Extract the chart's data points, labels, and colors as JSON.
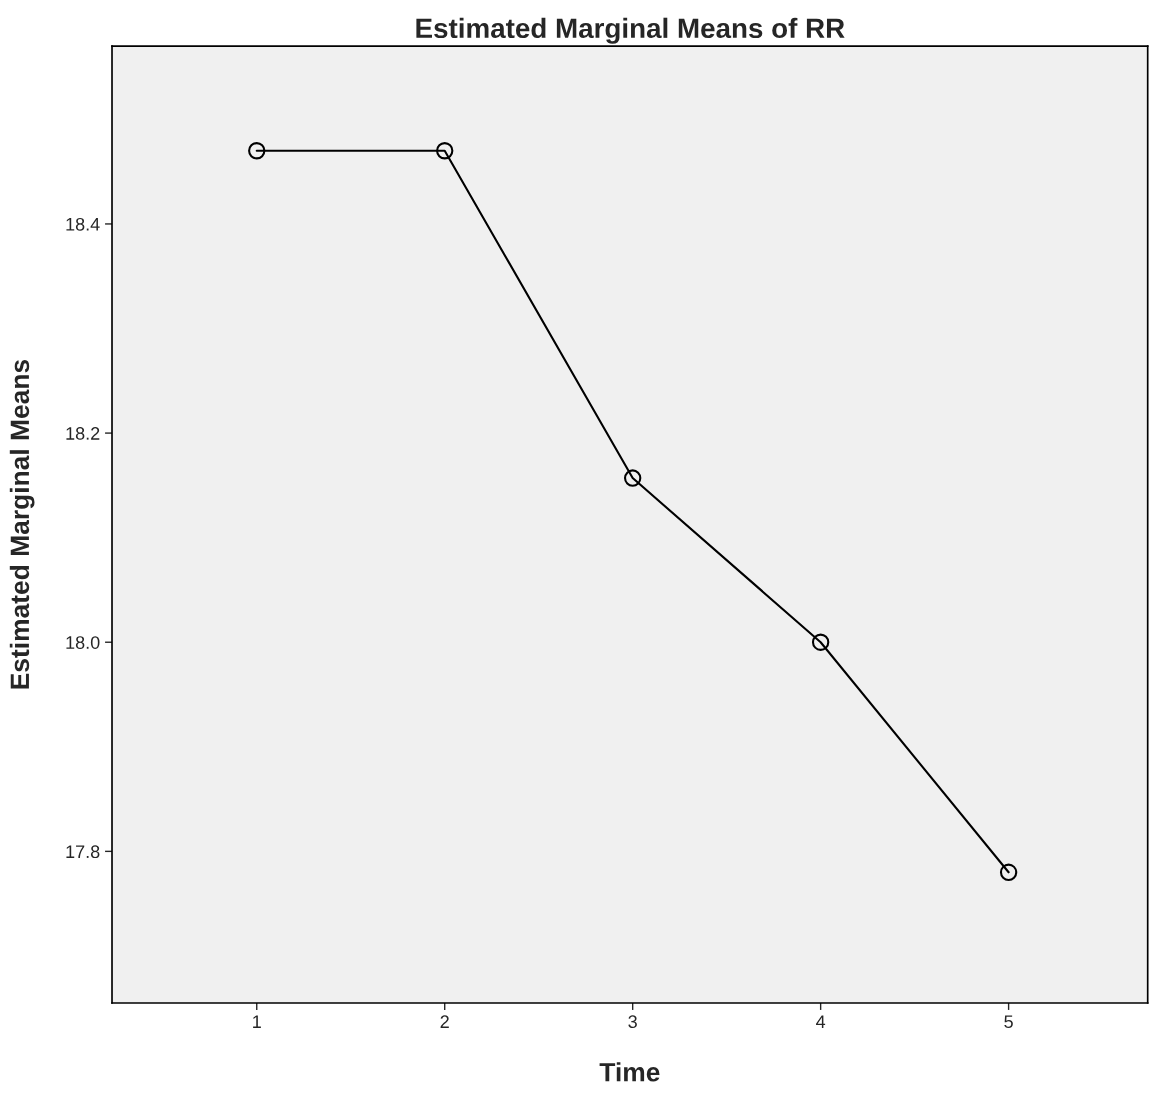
{
  "chart_data": {
    "type": "line",
    "title": "Estimated Marginal Means of RR",
    "xlabel": "Time",
    "ylabel": "Estimated Marginal Means",
    "categories": [
      "1",
      "2",
      "3",
      "4",
      "5"
    ],
    "series": [
      {
        "color": "#000000",
        "values": [
          18.47,
          18.47,
          18.157,
          18.0,
          17.78
        ]
      }
    ],
    "ylim": [
      17.655,
      18.57
    ],
    "yticks": [
      17.8,
      {
        "value": 18.0,
        "label": "18.0"
      },
      18.2,
      18.4
    ],
    "marker": "circle",
    "line_style": "solid",
    "grid": false,
    "legend": false
  }
}
